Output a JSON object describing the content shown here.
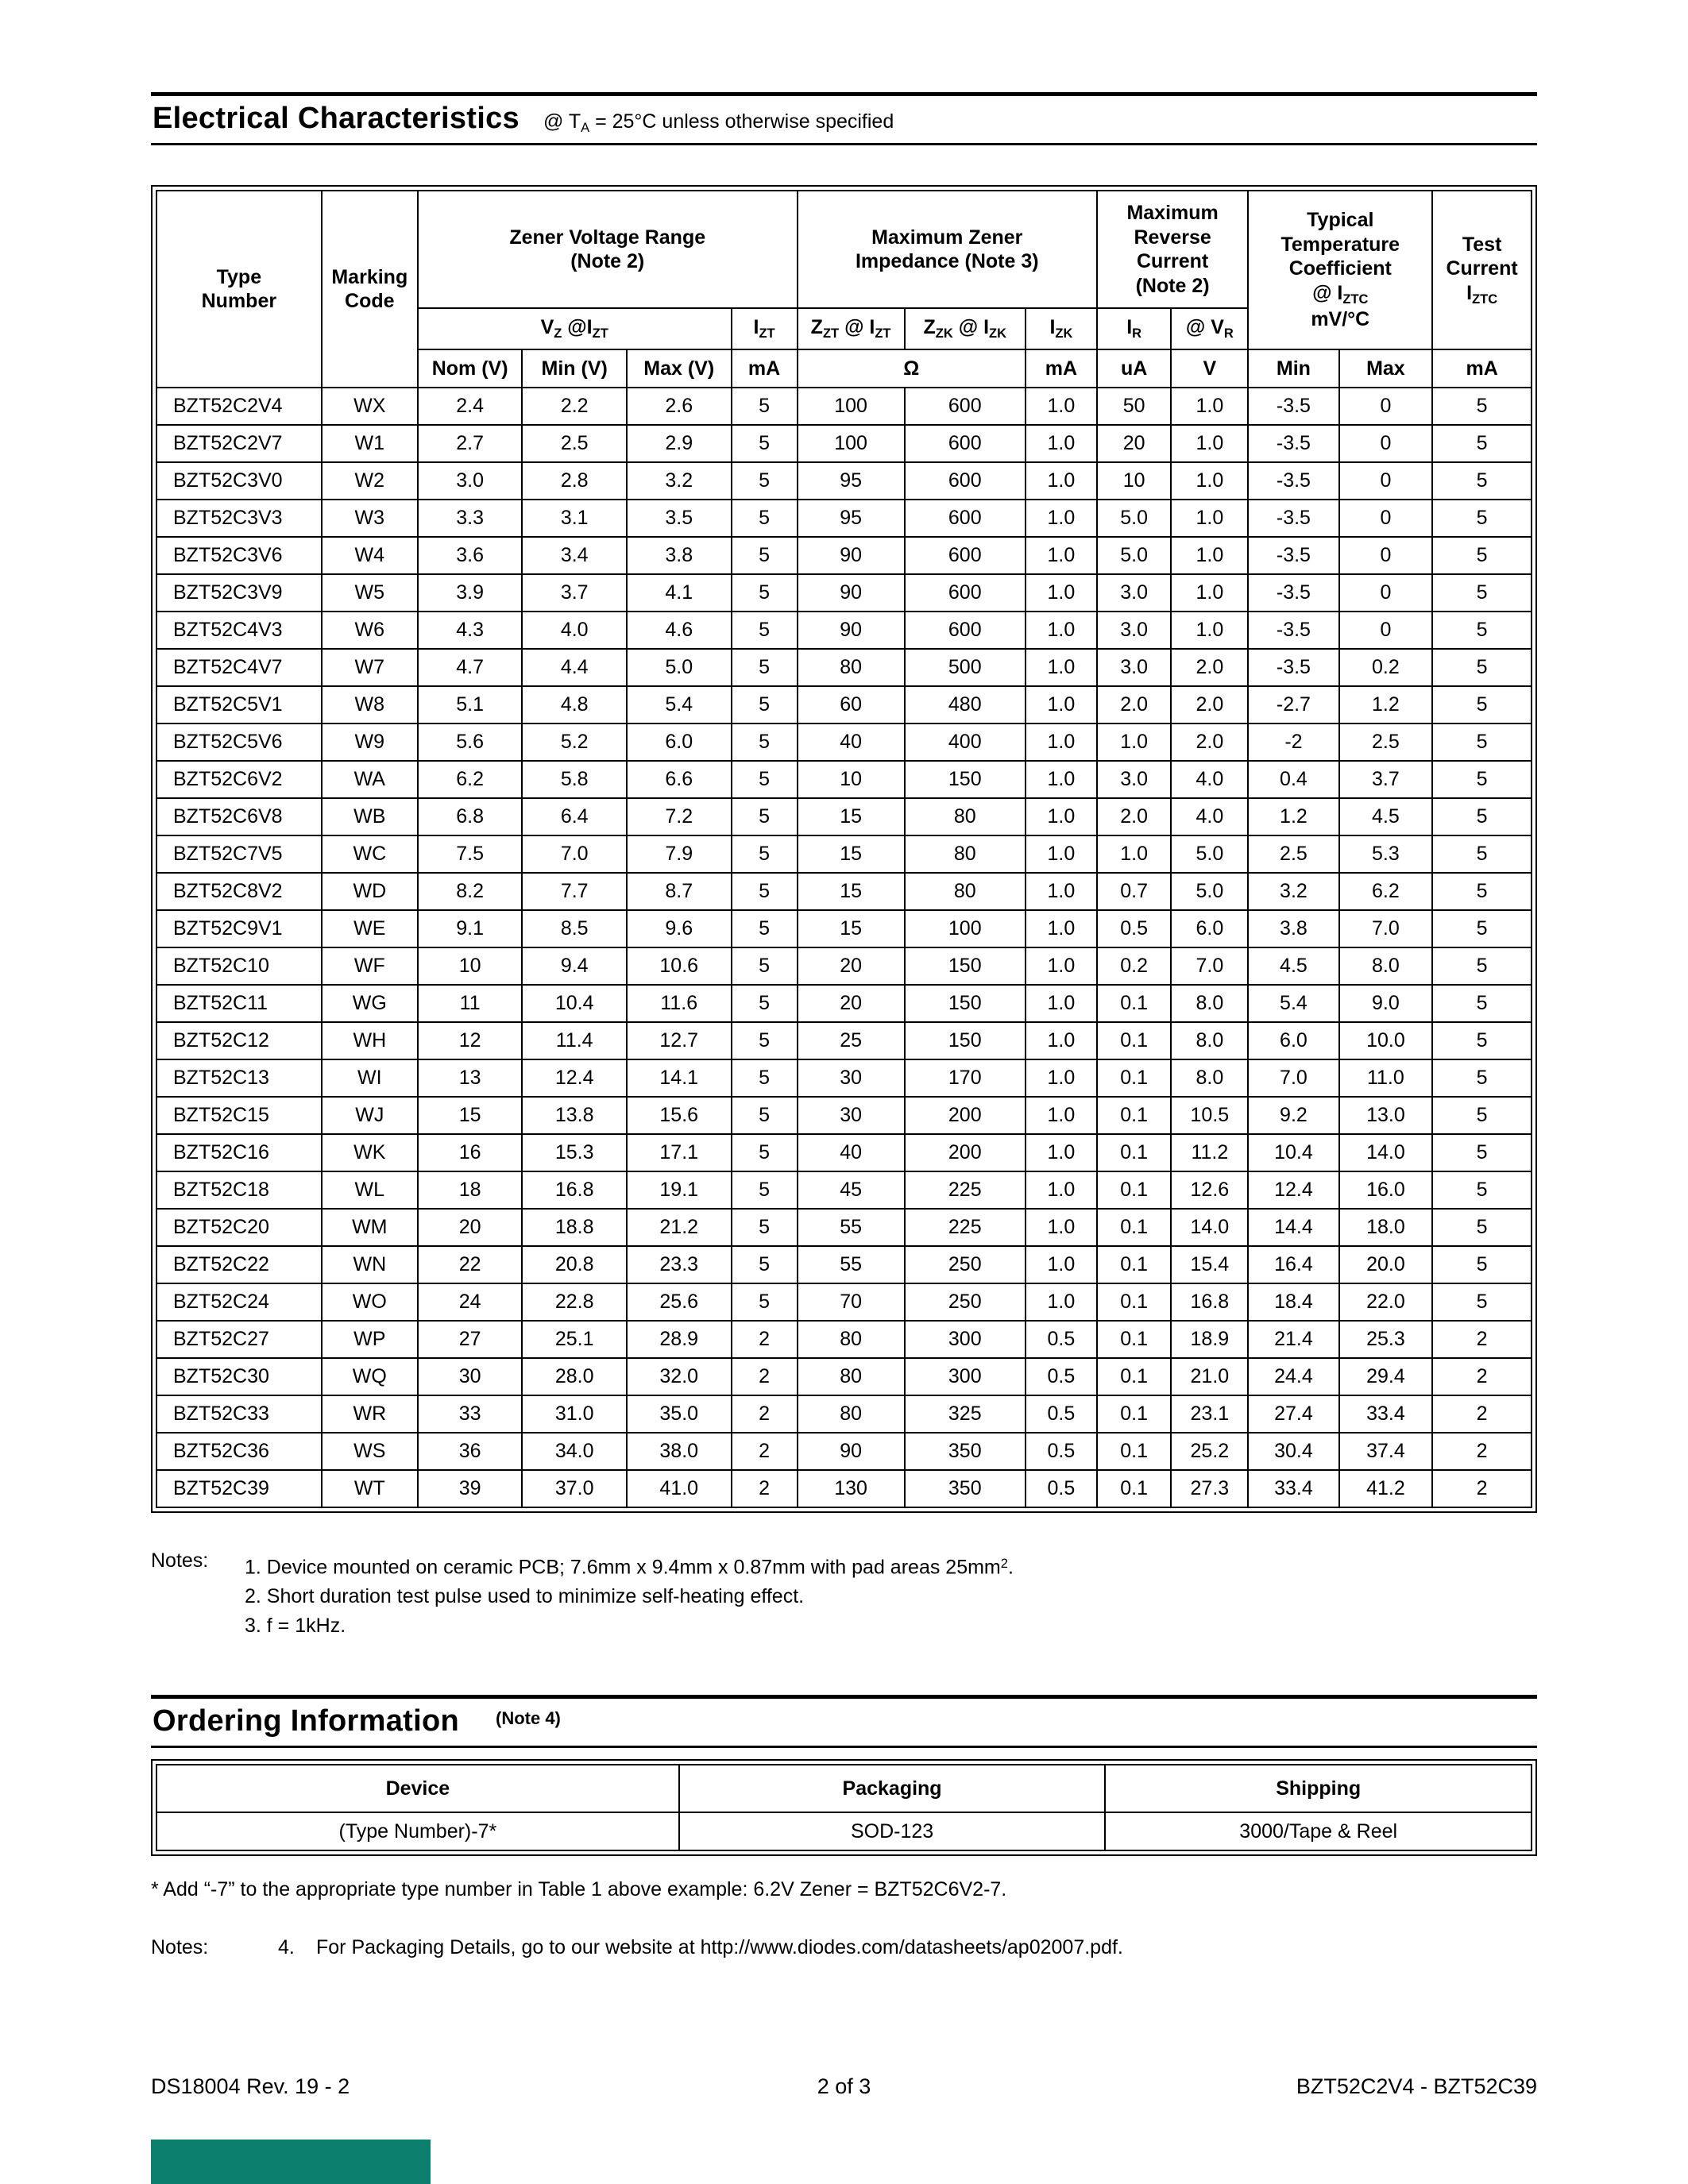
{
  "electrical": {
    "title": "Electrical Characteristics",
    "subtitle": "@ T~A~ = 25°C unless otherwise specified",
    "table": {
      "header": {
        "type_number": "Type\nNumber",
        "marking_code": "Marking\nCode",
        "zener_range": "Zener Voltage Range\n(Note 2)",
        "max_impedance": "Maximum Zener\nImpedance (Note 3)",
        "max_reverse": "Maximum\nReverse\nCurrent\n(Note 2)",
        "temp_coeff": "Typical\nTemperature\nCoefficient\n@ I~ZTC~\nmV/°C",
        "test_current": "Test\nCurrent\nI~ZTC~",
        "vz_izt": "V~Z~ @I~ZT~",
        "izt": "I~ZT~",
        "zzt": "Z~ZT~ @ I~ZT~",
        "zzk": "Z~ZK~ @ I~ZK~",
        "izk": "I~ZK~",
        "ir": "I~R~",
        "vr": "@ V~R~",
        "nom": "Nom (V)",
        "min": "Min (V)",
        "max": "Max (V)",
        "izt_unit": "mA",
        "ohm": "Ω",
        "izk_unit": "mA",
        "ir_unit": "uA",
        "vr_unit": "V",
        "tc_min": "Min",
        "tc_max": "Max",
        "test_unit": "mA"
      },
      "rows": [
        [
          "BZT52C2V4",
          "WX",
          "2.4",
          "2.2",
          "2.6",
          "5",
          "100",
          "600",
          "1.0",
          "50",
          "1.0",
          "-3.5",
          "0",
          "5"
        ],
        [
          "BZT52C2V7",
          "W1",
          "2.7",
          "2.5",
          "2.9",
          "5",
          "100",
          "600",
          "1.0",
          "20",
          "1.0",
          "-3.5",
          "0",
          "5"
        ],
        [
          "BZT52C3V0",
          "W2",
          "3.0",
          "2.8",
          "3.2",
          "5",
          "95",
          "600",
          "1.0",
          "10",
          "1.0",
          "-3.5",
          "0",
          "5"
        ],
        [
          "BZT52C3V3",
          "W3",
          "3.3",
          "3.1",
          "3.5",
          "5",
          "95",
          "600",
          "1.0",
          "5.0",
          "1.0",
          "-3.5",
          "0",
          "5"
        ],
        [
          "BZT52C3V6",
          "W4",
          "3.6",
          "3.4",
          "3.8",
          "5",
          "90",
          "600",
          "1.0",
          "5.0",
          "1.0",
          "-3.5",
          "0",
          "5"
        ],
        [
          "BZT52C3V9",
          "W5",
          "3.9",
          "3.7",
          "4.1",
          "5",
          "90",
          "600",
          "1.0",
          "3.0",
          "1.0",
          "-3.5",
          "0",
          "5"
        ],
        [
          "BZT52C4V3",
          "W6",
          "4.3",
          "4.0",
          "4.6",
          "5",
          "90",
          "600",
          "1.0",
          "3.0",
          "1.0",
          "-3.5",
          "0",
          "5"
        ],
        [
          "BZT52C4V7",
          "W7",
          "4.7",
          "4.4",
          "5.0",
          "5",
          "80",
          "500",
          "1.0",
          "3.0",
          "2.0",
          "-3.5",
          "0.2",
          "5"
        ],
        [
          "BZT52C5V1",
          "W8",
          "5.1",
          "4.8",
          "5.4",
          "5",
          "60",
          "480",
          "1.0",
          "2.0",
          "2.0",
          "-2.7",
          "1.2",
          "5"
        ],
        [
          "BZT52C5V6",
          "W9",
          "5.6",
          "5.2",
          "6.0",
          "5",
          "40",
          "400",
          "1.0",
          "1.0",
          "2.0",
          "-2",
          "2.5",
          "5"
        ],
        [
          "BZT52C6V2",
          "WA",
          "6.2",
          "5.8",
          "6.6",
          "5",
          "10",
          "150",
          "1.0",
          "3.0",
          "4.0",
          "0.4",
          "3.7",
          "5"
        ],
        [
          "BZT52C6V8",
          "WB",
          "6.8",
          "6.4",
          "7.2",
          "5",
          "15",
          "80",
          "1.0",
          "2.0",
          "4.0",
          "1.2",
          "4.5",
          "5"
        ],
        [
          "BZT52C7V5",
          "WC",
          "7.5",
          "7.0",
          "7.9",
          "5",
          "15",
          "80",
          "1.0",
          "1.0",
          "5.0",
          "2.5",
          "5.3",
          "5"
        ],
        [
          "BZT52C8V2",
          "WD",
          "8.2",
          "7.7",
          "8.7",
          "5",
          "15",
          "80",
          "1.0",
          "0.7",
          "5.0",
          "3.2",
          "6.2",
          "5"
        ],
        [
          "BZT52C9V1",
          "WE",
          "9.1",
          "8.5",
          "9.6",
          "5",
          "15",
          "100",
          "1.0",
          "0.5",
          "6.0",
          "3.8",
          "7.0",
          "5"
        ],
        [
          "BZT52C10",
          "WF",
          "10",
          "9.4",
          "10.6",
          "5",
          "20",
          "150",
          "1.0",
          "0.2",
          "7.0",
          "4.5",
          "8.0",
          "5"
        ],
        [
          "BZT52C11",
          "WG",
          "11",
          "10.4",
          "11.6",
          "5",
          "20",
          "150",
          "1.0",
          "0.1",
          "8.0",
          "5.4",
          "9.0",
          "5"
        ],
        [
          "BZT52C12",
          "WH",
          "12",
          "11.4",
          "12.7",
          "5",
          "25",
          "150",
          "1.0",
          "0.1",
          "8.0",
          "6.0",
          "10.0",
          "5"
        ],
        [
          "BZT52C13",
          "WI",
          "13",
          "12.4",
          "14.1",
          "5",
          "30",
          "170",
          "1.0",
          "0.1",
          "8.0",
          "7.0",
          "11.0",
          "5"
        ],
        [
          "BZT52C15",
          "WJ",
          "15",
          "13.8",
          "15.6",
          "5",
          "30",
          "200",
          "1.0",
          "0.1",
          "10.5",
          "9.2",
          "13.0",
          "5"
        ],
        [
          "BZT52C16",
          "WK",
          "16",
          "15.3",
          "17.1",
          "5",
          "40",
          "200",
          "1.0",
          "0.1",
          "11.2",
          "10.4",
          "14.0",
          "5"
        ],
        [
          "BZT52C18",
          "WL",
          "18",
          "16.8",
          "19.1",
          "5",
          "45",
          "225",
          "1.0",
          "0.1",
          "12.6",
          "12.4",
          "16.0",
          "5"
        ],
        [
          "BZT52C20",
          "WM",
          "20",
          "18.8",
          "21.2",
          "5",
          "55",
          "225",
          "1.0",
          "0.1",
          "14.0",
          "14.4",
          "18.0",
          "5"
        ],
        [
          "BZT52C22",
          "WN",
          "22",
          "20.8",
          "23.3",
          "5",
          "55",
          "250",
          "1.0",
          "0.1",
          "15.4",
          "16.4",
          "20.0",
          "5"
        ],
        [
          "BZT52C24",
          "WO",
          "24",
          "22.8",
          "25.6",
          "5",
          "70",
          "250",
          "1.0",
          "0.1",
          "16.8",
          "18.4",
          "22.0",
          "5"
        ],
        [
          "BZT52C27",
          "WP",
          "27",
          "25.1",
          "28.9",
          "2",
          "80",
          "300",
          "0.5",
          "0.1",
          "18.9",
          "21.4",
          "25.3",
          "2"
        ],
        [
          "BZT52C30",
          "WQ",
          "30",
          "28.0",
          "32.0",
          "2",
          "80",
          "300",
          "0.5",
          "0.1",
          "21.0",
          "24.4",
          "29.4",
          "2"
        ],
        [
          "BZT52C33",
          "WR",
          "33",
          "31.0",
          "35.0",
          "2",
          "80",
          "325",
          "0.5",
          "0.1",
          "23.1",
          "27.4",
          "33.4",
          "2"
        ],
        [
          "BZT52C36",
          "WS",
          "36",
          "34.0",
          "38.0",
          "2",
          "90",
          "350",
          "0.5",
          "0.1",
          "25.2",
          "30.4",
          "37.4",
          "2"
        ],
        [
          "BZT52C39",
          "WT",
          "39",
          "37.0",
          "41.0",
          "2",
          "130",
          "350",
          "0.5",
          "0.1",
          "27.3",
          "33.4",
          "41.2",
          "2"
        ]
      ]
    },
    "notes_label": "Notes:",
    "notes": [
      "1. Device mounted on ceramic PCB; 7.6mm x 9.4mm x 0.87mm with pad areas 25mm^2^.",
      "2. Short duration test pulse used to minimize self-heating effect.",
      "3. f = 1kHz."
    ]
  },
  "ordering": {
    "title": "Ordering Information",
    "title_note": "(Note 4)",
    "table": {
      "headers": [
        "Device",
        "Packaging",
        "Shipping"
      ],
      "rows": [
        [
          "(Type Number)-7*",
          "SOD-123",
          "3000/Tape & Reel"
        ]
      ]
    },
    "footnote": "* Add “-7” to the appropriate type number in Table 1 above example: 6.2V Zener = BZT52C6V2-7.",
    "notes_label": "Notes:",
    "note4_num": "4.",
    "note4_text": "For Packaging Details, go to our website at http://www.diodes.com/datasheets/ap02007.pdf."
  },
  "footer": {
    "left": "DS18004 Rev. 19 - 2",
    "center": "2 of 3",
    "right": "BZT52C2V4 - BZT52C39"
  },
  "brand_bar_color": "#0c7f6e"
}
